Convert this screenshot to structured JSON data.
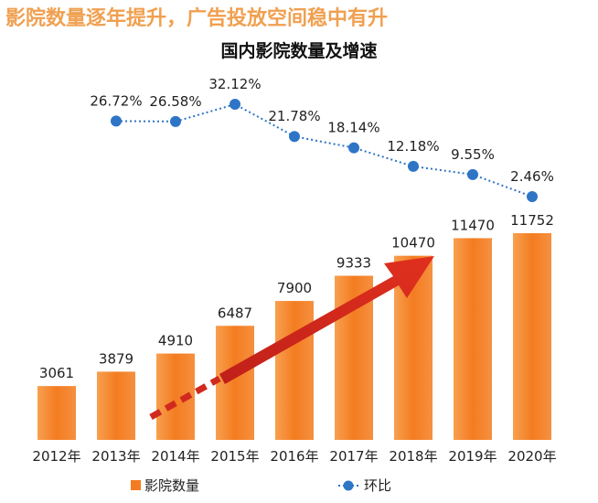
{
  "headline": "影院数量逐年提升，广告投放空间稳中有升",
  "chart_data": {
    "type": "bar+line",
    "title": "国内影院数量及增速",
    "categories": [
      "2012年",
      "2013年",
      "2014年",
      "2015年",
      "2016年",
      "2017年",
      "2018年",
      "2019年",
      "2020年"
    ],
    "series": [
      {
        "name": "影院数量",
        "type": "bar",
        "color": "#f47c20",
        "values": [
          3061,
          3879,
          4910,
          6487,
          7900,
          9333,
          10470,
          11470,
          11752
        ]
      },
      {
        "name": "环比",
        "type": "line",
        "color": "#2e75c6",
        "values": [
          null,
          26.72,
          26.58,
          32.12,
          21.78,
          18.14,
          12.18,
          9.55,
          2.46
        ],
        "labels": [
          "",
          "26.72%",
          "26.58%",
          "32.12%",
          "21.78%",
          "18.14%",
          "12.18%",
          "9.55%",
          "2.46%"
        ]
      }
    ],
    "legend": "bottom",
    "grid": false,
    "annotation": "red trend arrow rising across bars"
  }
}
